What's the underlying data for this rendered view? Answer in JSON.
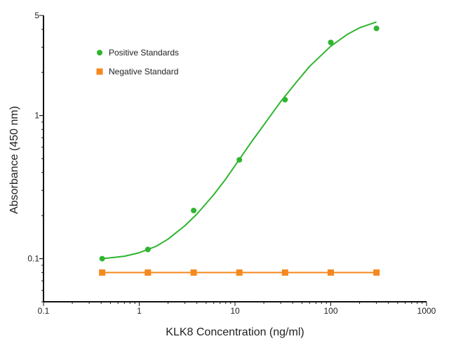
{
  "chart_data": {
    "type": "scatter",
    "title": "",
    "xlabel": "KLK8 Concentration (ng/ml)",
    "ylabel": "Absorbance (450 nm)",
    "xscale": "log",
    "yscale": "log",
    "xlim": [
      0.1,
      1000
    ],
    "ylim": [
      0.05,
      5
    ],
    "xticks": [
      0.1,
      1,
      10,
      100,
      1000
    ],
    "xtick_labels": [
      "0.1",
      "1",
      "10",
      "100",
      "1000"
    ],
    "yticks": [
      0.1,
      1,
      5
    ],
    "ytick_labels": [
      "0.1",
      "1",
      "5"
    ],
    "grid": false,
    "legend_position": "top-left",
    "series": [
      {
        "name": "Positive Standards",
        "color": "#2fb52f",
        "marker": "circle",
        "x": [
          0.41,
          1.23,
          3.7,
          11.1,
          33.3,
          100,
          300
        ],
        "y": [
          0.1,
          0.116,
          0.217,
          0.49,
          1.29,
          3.24,
          4.06
        ],
        "fit_curve": {
          "x": [
            0.41,
            0.7,
            1,
            1.5,
            2,
            3,
            4,
            6,
            8,
            11,
            15,
            20,
            30,
            45,
            60,
            100,
            150,
            200,
            300
          ],
          "y": [
            0.1,
            0.104,
            0.11,
            0.122,
            0.137,
            0.17,
            0.205,
            0.28,
            0.36,
            0.49,
            0.66,
            0.86,
            1.25,
            1.75,
            2.2,
            3.05,
            3.7,
            4.1,
            4.5
          ]
        }
      },
      {
        "name": "Negative Standard",
        "color": "#f5891f",
        "marker": "square",
        "x": [
          0.41,
          1.23,
          3.7,
          11.1,
          33.3,
          100,
          300
        ],
        "y": [
          0.08,
          0.08,
          0.08,
          0.08,
          0.08,
          0.08,
          0.08
        ]
      }
    ]
  }
}
